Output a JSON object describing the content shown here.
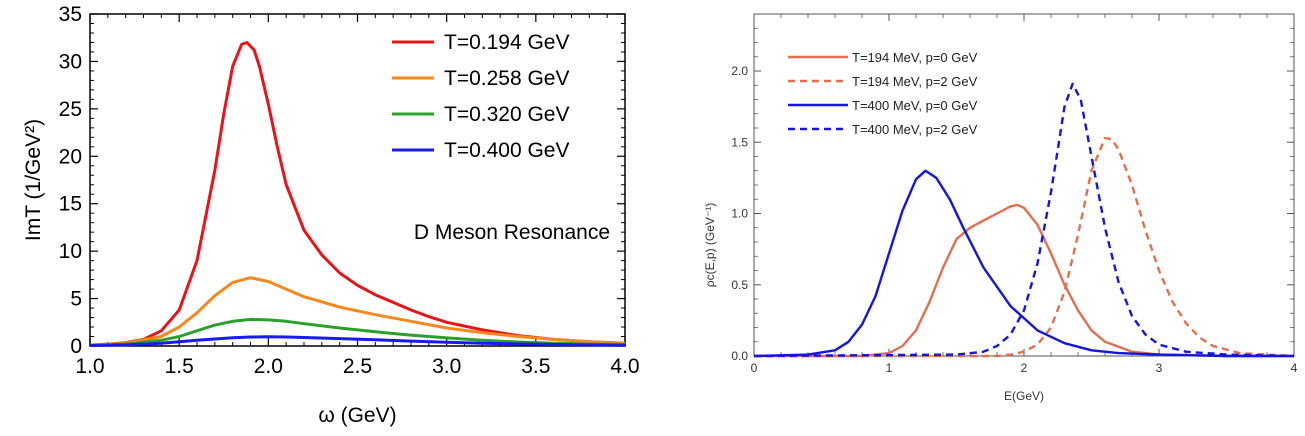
{
  "chart_data": [
    {
      "type": "line",
      "xlabel": "ω (GeV)",
      "ylabel": "ImT (1/GeV²)",
      "xlim": [
        1.0,
        4.0
      ],
      "ylim": [
        0,
        35
      ],
      "xticks": [
        "1.0",
        "1.5",
        "2.0",
        "2.5",
        "3.0",
        "3.5",
        "4.0"
      ],
      "yticks": [
        "0",
        "5",
        "10",
        "15",
        "20",
        "25",
        "30",
        "35"
      ],
      "annotation": "D Meson Resonance",
      "legend_position": "top-right",
      "series": [
        {
          "name": "T=0.194 GeV",
          "color": "#e8141a",
          "dash": "solid",
          "x": [
            1.0,
            1.1,
            1.2,
            1.3,
            1.4,
            1.5,
            1.6,
            1.7,
            1.75,
            1.8,
            1.85,
            1.88,
            1.92,
            1.95,
            2.0,
            2.05,
            2.1,
            2.2,
            2.3,
            2.4,
            2.5,
            2.6,
            2.7,
            2.8,
            2.9,
            3.0,
            3.2,
            3.4,
            3.6,
            3.8,
            4.0
          ],
          "y": [
            0.1,
            0.2,
            0.35,
            0.7,
            1.6,
            3.8,
            9.0,
            18.5,
            24.5,
            29.5,
            31.8,
            32.0,
            31.2,
            29.5,
            25.5,
            21.0,
            17.0,
            12.2,
            9.6,
            7.7,
            6.4,
            5.4,
            4.6,
            3.8,
            3.1,
            2.5,
            1.7,
            1.1,
            0.7,
            0.45,
            0.3
          ]
        },
        {
          "name": "T=0.258 GeV",
          "color": "#f5881f",
          "dash": "solid",
          "x": [
            1.0,
            1.2,
            1.4,
            1.5,
            1.6,
            1.7,
            1.8,
            1.9,
            2.0,
            2.1,
            2.2,
            2.4,
            2.6,
            2.8,
            3.0,
            3.2,
            3.4,
            3.6,
            3.8,
            4.0
          ],
          "y": [
            0.1,
            0.3,
            1.0,
            2.0,
            3.5,
            5.3,
            6.7,
            7.2,
            6.8,
            6.0,
            5.2,
            4.1,
            3.3,
            2.6,
            1.9,
            1.4,
            1.0,
            0.7,
            0.45,
            0.3
          ]
        },
        {
          "name": "T=0.320 GeV",
          "color": "#2ca02c",
          "dash": "solid",
          "x": [
            1.0,
            1.2,
            1.4,
            1.5,
            1.6,
            1.7,
            1.8,
            1.9,
            2.0,
            2.1,
            2.2,
            2.4,
            2.6,
            2.8,
            3.0,
            3.2,
            3.4,
            3.6,
            3.8,
            4.0
          ],
          "y": [
            0.05,
            0.2,
            0.6,
            1.0,
            1.6,
            2.2,
            2.6,
            2.8,
            2.75,
            2.6,
            2.35,
            1.9,
            1.5,
            1.15,
            0.85,
            0.6,
            0.42,
            0.3,
            0.2,
            0.15
          ]
        },
        {
          "name": "T=0.400 GeV",
          "color": "#1a1aee",
          "dash": "solid",
          "x": [
            1.0,
            1.2,
            1.4,
            1.6,
            1.8,
            1.9,
            2.0,
            2.1,
            2.2,
            2.4,
            2.6,
            2.8,
            3.0,
            3.2,
            3.4,
            3.6,
            3.8,
            4.0
          ],
          "y": [
            0.05,
            0.12,
            0.3,
            0.6,
            0.88,
            0.95,
            0.97,
            0.95,
            0.9,
            0.78,
            0.65,
            0.52,
            0.4,
            0.3,
            0.22,
            0.16,
            0.12,
            0.08
          ]
        }
      ]
    },
    {
      "type": "line",
      "xlabel": "E(GeV)",
      "ylabel": "ρc(E,p) (GeV⁻¹)",
      "xlim": [
        0,
        4
      ],
      "ylim": [
        0,
        2.4
      ],
      "xticks": [
        "0",
        "1",
        "2",
        "3",
        "4"
      ],
      "yticks": [
        "0.0",
        "0.5",
        "1.0",
        "1.5",
        "2.0"
      ],
      "legend_position": "top-left",
      "series": [
        {
          "name": "T=194 MeV, p=0 GeV",
          "color": "#e07050",
          "dash": "solid",
          "x": [
            0,
            0.8,
            1.0,
            1.1,
            1.2,
            1.3,
            1.4,
            1.5,
            1.6,
            1.7,
            1.8,
            1.9,
            1.95,
            2.0,
            2.1,
            2.2,
            2.3,
            2.4,
            2.5,
            2.6,
            2.8,
            3.0,
            3.5,
            4.0
          ],
          "y": [
            0,
            0,
            0.02,
            0.07,
            0.18,
            0.38,
            0.62,
            0.82,
            0.9,
            0.95,
            1.0,
            1.05,
            1.06,
            1.04,
            0.92,
            0.72,
            0.5,
            0.32,
            0.18,
            0.1,
            0.03,
            0.01,
            0.0,
            0.0
          ]
        },
        {
          "name": "T=194 MeV, p=2 GeV",
          "color": "#e07050",
          "dash": "dashed",
          "x": [
            0,
            1.8,
            1.9,
            2.0,
            2.1,
            2.2,
            2.3,
            2.4,
            2.5,
            2.6,
            2.65,
            2.7,
            2.8,
            2.9,
            3.0,
            3.1,
            3.2,
            3.3,
            3.4,
            3.6,
            3.8,
            4.0
          ],
          "y": [
            0,
            0,
            0.01,
            0.03,
            0.08,
            0.2,
            0.45,
            0.85,
            1.3,
            1.53,
            1.52,
            1.45,
            1.2,
            0.88,
            0.6,
            0.38,
            0.23,
            0.13,
            0.07,
            0.02,
            0.01,
            0.0
          ]
        },
        {
          "name": "T=400 MeV, p=0 GeV",
          "color": "#1515dd",
          "dash": "solid",
          "x": [
            0,
            0.4,
            0.6,
            0.7,
            0.8,
            0.9,
            1.0,
            1.1,
            1.2,
            1.27,
            1.35,
            1.45,
            1.55,
            1.7,
            1.9,
            2.1,
            2.3,
            2.5,
            2.7,
            3.0,
            3.5,
            4.0
          ],
          "y": [
            0,
            0.01,
            0.04,
            0.1,
            0.22,
            0.42,
            0.72,
            1.02,
            1.24,
            1.3,
            1.25,
            1.1,
            0.9,
            0.62,
            0.35,
            0.18,
            0.09,
            0.04,
            0.02,
            0.01,
            0.0,
            0.0
          ]
        },
        {
          "name": "T=400 MeV, p=2 GeV",
          "color": "#1515dd",
          "dash": "dashed",
          "x": [
            0,
            1.5,
            1.7,
            1.8,
            1.9,
            2.0,
            2.1,
            2.2,
            2.25,
            2.3,
            2.36,
            2.42,
            2.5,
            2.6,
            2.7,
            2.8,
            2.9,
            3.0,
            3.2,
            3.5,
            4.0
          ],
          "y": [
            0,
            0.01,
            0.03,
            0.07,
            0.15,
            0.32,
            0.65,
            1.15,
            1.45,
            1.75,
            1.91,
            1.8,
            1.4,
            0.9,
            0.52,
            0.28,
            0.15,
            0.08,
            0.03,
            0.01,
            0.0
          ]
        }
      ]
    }
  ]
}
